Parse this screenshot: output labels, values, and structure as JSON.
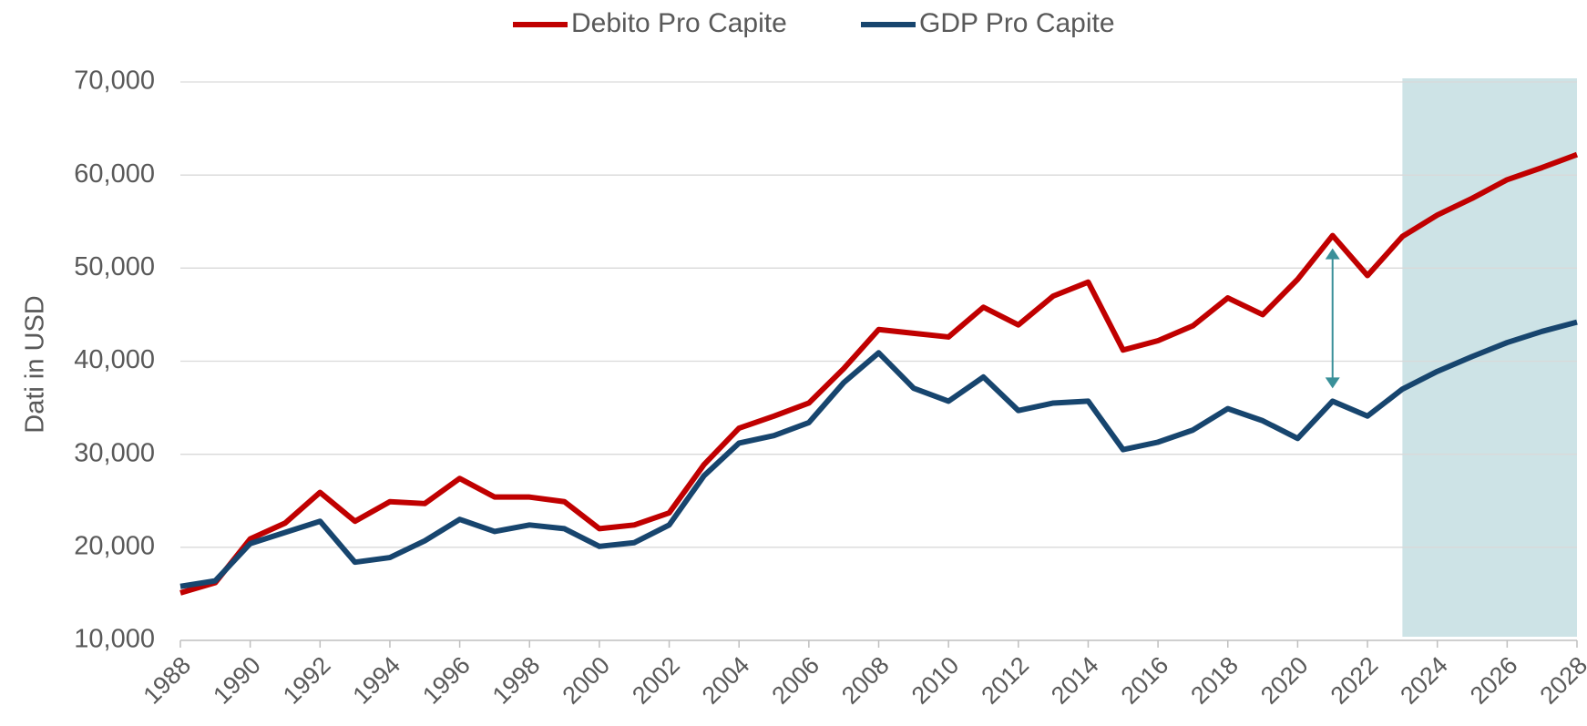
{
  "chart_data": {
    "type": "line",
    "y_label": "Dati in USD",
    "x": [
      1988,
      1989,
      1990,
      1991,
      1992,
      1993,
      1994,
      1995,
      1996,
      1997,
      1998,
      1999,
      2000,
      2001,
      2002,
      2003,
      2004,
      2005,
      2006,
      2007,
      2008,
      2009,
      2010,
      2011,
      2012,
      2013,
      2014,
      2015,
      2016,
      2017,
      2018,
      2019,
      2020,
      2021,
      2022,
      2023,
      2024,
      2025,
      2026,
      2027,
      2028
    ],
    "series": [
      {
        "name": "Debito Pro Capite",
        "color": "#c00000",
        "values": [
          15100,
          16200,
          20900,
          22600,
          25900,
          22800,
          24900,
          24700,
          27400,
          25400,
          25400,
          24900,
          22000,
          22400,
          23700,
          28900,
          32800,
          34100,
          35500,
          39200,
          43400,
          43000,
          42600,
          45800,
          43900,
          47000,
          48500,
          41200,
          42200,
          43800,
          46800,
          45000,
          48800,
          53500,
          49200,
          53400,
          55700,
          57500,
          59500,
          60800,
          62200
        ]
      },
      {
        "name": "GDP Pro Capite",
        "color": "#17456e",
        "values": [
          15800,
          16400,
          20400,
          21600,
          22800,
          18400,
          18900,
          20700,
          23000,
          21700,
          22400,
          22000,
          20100,
          20500,
          22400,
          27700,
          31200,
          32000,
          33400,
          37700,
          40900,
          37100,
          35700,
          38300,
          34700,
          35500,
          35700,
          30500,
          31300,
          32600,
          34900,
          33600,
          31700,
          35700,
          34100,
          37000,
          38900,
          40500,
          42000,
          43200,
          44200
        ]
      }
    ],
    "xlim": [
      1988,
      2028
    ],
    "xticks": [
      1988,
      1990,
      1992,
      1994,
      1996,
      1998,
      2000,
      2002,
      2004,
      2006,
      2008,
      2010,
      2012,
      2014,
      2016,
      2018,
      2020,
      2022,
      2024,
      2026,
      2028
    ],
    "ylim": [
      10000,
      70000
    ],
    "yticks": [
      {
        "value": 10000,
        "label": "10,000"
      },
      {
        "value": 20000,
        "label": "20,000"
      },
      {
        "value": 30000,
        "label": "30,000"
      },
      {
        "value": 40000,
        "label": "40,000"
      },
      {
        "value": 50000,
        "label": "50,000"
      },
      {
        "value": 60000,
        "label": "60,000"
      },
      {
        "value": 70000,
        "label": "70,000"
      }
    ],
    "grid": true,
    "legend": "top",
    "highlight_xrange": [
      2023,
      2028
    ],
    "highlight_color": "#cde3e6",
    "annotation_arrow": {
      "x": 2021,
      "color": "#3a9099"
    }
  }
}
